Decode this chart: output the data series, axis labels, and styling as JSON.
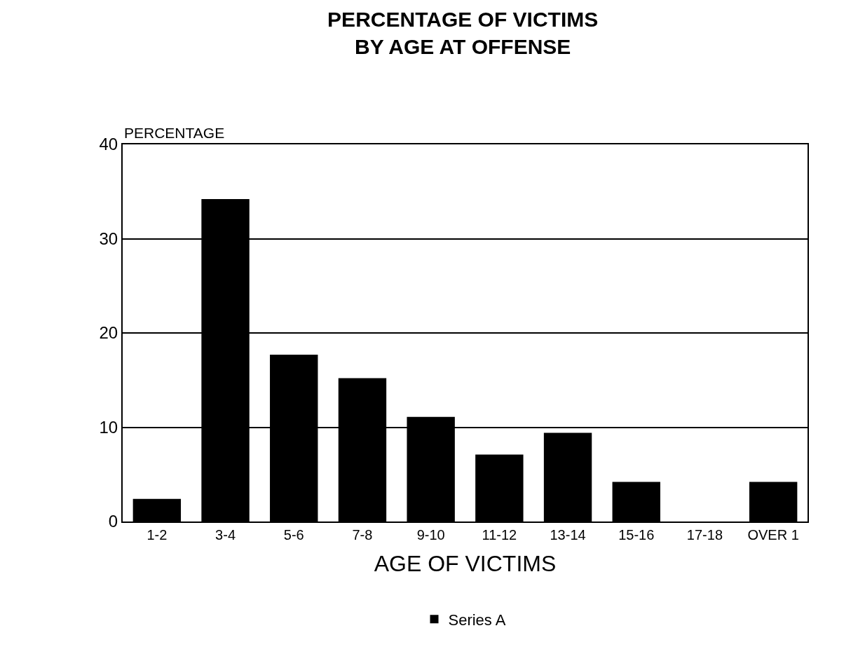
{
  "chart_data": {
    "type": "bar",
    "title": "PERCENTAGE OF VICTIMS\nBY AGE AT OFFENSE",
    "xlabel": "AGE OF VICTIMS",
    "ylabel": "PERCENTAGE",
    "categories": [
      "1-2",
      "3-4",
      "5-6",
      "7-8",
      "9-10",
      "11-12",
      "13-14",
      "15-16",
      "17-18",
      "OVER 1"
    ],
    "series": [
      {
        "name": "Series A",
        "color": "#000000",
        "values": [
          2.4,
          34.2,
          17.7,
          15.2,
          11.1,
          7.1,
          9.4,
          4.2,
          0,
          4.2
        ]
      }
    ],
    "ylim": [
      0,
      40
    ],
    "yticks": [
      0,
      10,
      20,
      30,
      40
    ],
    "grid": "y",
    "legend": "bottom"
  }
}
